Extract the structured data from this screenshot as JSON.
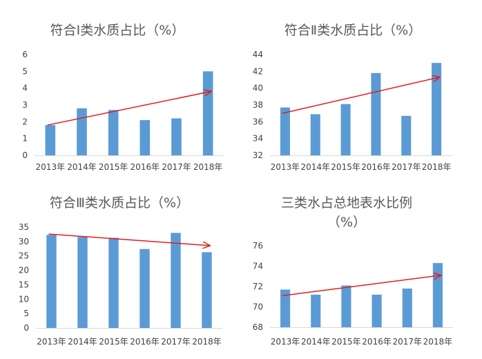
{
  "chart_data": [
    {
      "type": "bar",
      "title": "符合Ⅰ类水质占比（%）",
      "title_lines": [
        "符合Ⅰ类水质占比（%）"
      ],
      "categories": [
        "2013年",
        "2014年",
        "2015年",
        "2016年",
        "2017年",
        "2018年"
      ],
      "values": [
        1.8,
        2.8,
        2.7,
        2.1,
        2.2,
        5.0
      ],
      "ylim": [
        0,
        6
      ],
      "yticks": [
        0,
        1,
        2,
        3,
        4,
        5,
        6
      ],
      "trend_arrow": {
        "direction": "up",
        "from_value": 1.8,
        "to_value": 3.8
      },
      "bar_color": "#5b9bd5",
      "arrow_color": "#e31a1c",
      "xlabel": "",
      "ylabel": "",
      "legend": false,
      "grid": false
    },
    {
      "type": "bar",
      "title": "符合Ⅱ类水质占比（%）",
      "title_lines": [
        "符合Ⅱ类水质占比（%）"
      ],
      "categories": [
        "2013年",
        "2014年",
        "2015年",
        "2016年",
        "2017年",
        "2018年"
      ],
      "values": [
        37.7,
        36.9,
        38.1,
        41.8,
        36.7,
        43.0
      ],
      "ylim": [
        32,
        44
      ],
      "yticks": [
        32,
        34,
        36,
        38,
        40,
        42,
        44
      ],
      "trend_arrow": {
        "direction": "up",
        "from_value": 37.0,
        "to_value": 41.3
      },
      "bar_color": "#5b9bd5",
      "arrow_color": "#e31a1c",
      "xlabel": "",
      "ylabel": "",
      "legend": false,
      "grid": false
    },
    {
      "type": "bar",
      "title": "符合Ⅲ类水质占比（%）",
      "title_lines": [
        "符合Ⅲ类水质占比（%）"
      ],
      "categories": [
        "2013年",
        "2014年",
        "2015年",
        "2016年",
        "2017年",
        "2018年"
      ],
      "values": [
        32.3,
        31.6,
        31.3,
        27.4,
        33.0,
        26.3
      ],
      "ylim": [
        0,
        35
      ],
      "yticks": [
        0,
        5,
        10,
        15,
        20,
        25,
        30,
        35
      ],
      "trend_arrow": {
        "direction": "down",
        "from_value": 32.6,
        "to_value": 28.6
      },
      "bar_color": "#5b9bd5",
      "arrow_color": "#e31a1c",
      "xlabel": "",
      "ylabel": "",
      "legend": false,
      "grid": false
    },
    {
      "type": "bar",
      "title": "三类水占总地表水比例（%）",
      "title_lines": [
        "三类水占总地表水比例",
        "（%）"
      ],
      "categories": [
        "2013年",
        "2014年",
        "2015年",
        "2016年",
        "2017年",
        "2018年"
      ],
      "values": [
        71.7,
        71.2,
        72.1,
        71.2,
        71.8,
        74.3
      ],
      "ylim": [
        68,
        76
      ],
      "yticks": [
        68,
        70,
        72,
        74,
        76
      ],
      "trend_arrow": {
        "direction": "up",
        "from_value": 71.1,
        "to_value": 73.1
      },
      "bar_color": "#5b9bd5",
      "arrow_color": "#e31a1c",
      "xlabel": "",
      "ylabel": "",
      "legend": false,
      "grid": false
    }
  ]
}
